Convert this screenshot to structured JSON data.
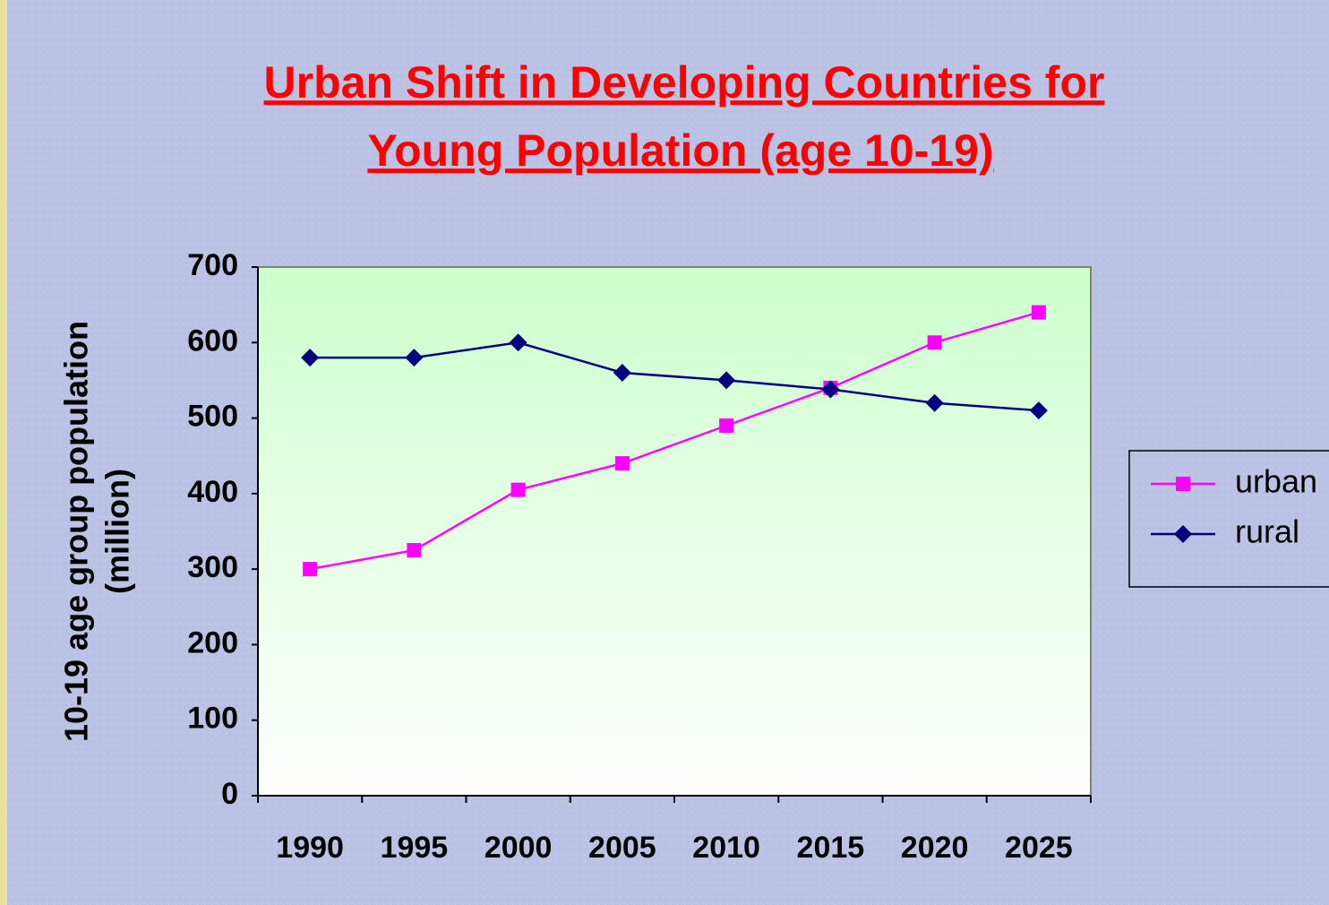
{
  "chart_data": {
    "type": "line",
    "title": [
      "Urban Shift in Developing Countries for",
      "Young Population (age 10-19)"
    ],
    "y_label": [
      "10-19 age group population",
      "(million)"
    ],
    "categories": [
      "1990",
      "1995",
      "2000",
      "2005",
      "2010",
      "2015",
      "2020",
      "2025"
    ],
    "series": [
      {
        "name": "urban",
        "color": "#ff00ff",
        "marker": "square",
        "values": [
          300,
          325,
          405,
          440,
          490,
          540,
          600,
          640
        ]
      },
      {
        "name": "rural",
        "color": "#000080",
        "marker": "diamond",
        "values": [
          580,
          580,
          600,
          560,
          550,
          538,
          520,
          510
        ]
      }
    ],
    "ylim": [
      0,
      700
    ],
    "yticks": [
      0,
      100,
      200,
      300,
      400,
      500,
      600,
      700
    ],
    "legend": "right"
  }
}
